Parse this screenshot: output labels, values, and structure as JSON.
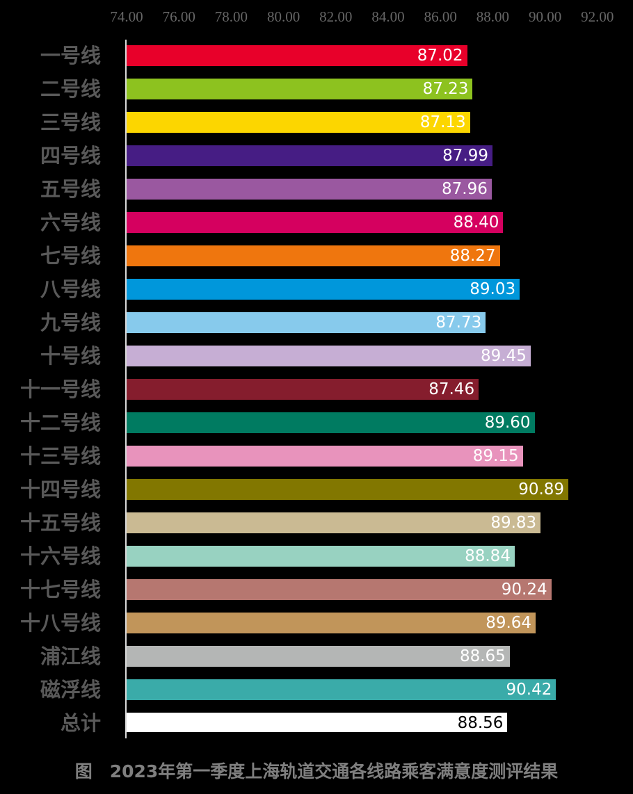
{
  "chart_data": {
    "type": "bar",
    "orientation": "horizontal",
    "title": "图　2023年第一季度上海轨道交通各线路乘客满意度测评结果",
    "xlabel": "",
    "ylabel": "",
    "xlim": [
      74,
      92
    ],
    "ticks": [
      "74.00",
      "76.00",
      "78.00",
      "80.00",
      "82.00",
      "84.00",
      "86.00",
      "88.00",
      "90.00",
      "92.00"
    ],
    "categories": [
      "一号线",
      "二号线",
      "三号线",
      "四号线",
      "五号线",
      "六号线",
      "七号线",
      "八号线",
      "九号线",
      "十号线",
      "十一号线",
      "十二号线",
      "十三号线",
      "十四号线",
      "十五号线",
      "十六号线",
      "十七号线",
      "十八号线",
      "浦江线",
      "磁浮线",
      "总计"
    ],
    "values": [
      87.02,
      87.23,
      87.13,
      87.99,
      87.96,
      88.4,
      88.27,
      89.03,
      87.73,
      89.45,
      87.46,
      89.6,
      89.15,
      90.89,
      89.83,
      88.84,
      90.24,
      89.64,
      88.65,
      90.42,
      88.56
    ],
    "value_labels": [
      "87.02",
      "87.23",
      "87.13",
      "87.99",
      "87.96",
      "88.40",
      "88.27",
      "89.03",
      "87.73",
      "89.45",
      "87.46",
      "89.60",
      "89.15",
      "90.89",
      "89.83",
      "88.84",
      "90.24",
      "89.64",
      "88.65",
      "90.42",
      "88.56"
    ],
    "colors": [
      "#e8002a",
      "#8dc21f",
      "#fcd600",
      "#461d84",
      "#9a58a0",
      "#d5005f",
      "#ef760e",
      "#0097db",
      "#87caec",
      "#c6aed4",
      "#851d2d",
      "#007b61",
      "#e893bc",
      "#827700",
      "#caba93",
      "#98d2c1",
      "#b67770",
      "#c1955a",
      "#b4b6b5",
      "#3aaba9",
      "#ffffff"
    ],
    "label_colors": [
      "#ffffff",
      "#ffffff",
      "#ffffff",
      "#ffffff",
      "#ffffff",
      "#ffffff",
      "#ffffff",
      "#ffffff",
      "#ffffff",
      "#ffffff",
      "#ffffff",
      "#ffffff",
      "#ffffff",
      "#ffffff",
      "#ffffff",
      "#ffffff",
      "#ffffff",
      "#ffffff",
      "#ffffff",
      "#ffffff",
      "#000000"
    ],
    "grid": false,
    "legend": "none",
    "axis_position": "top"
  }
}
